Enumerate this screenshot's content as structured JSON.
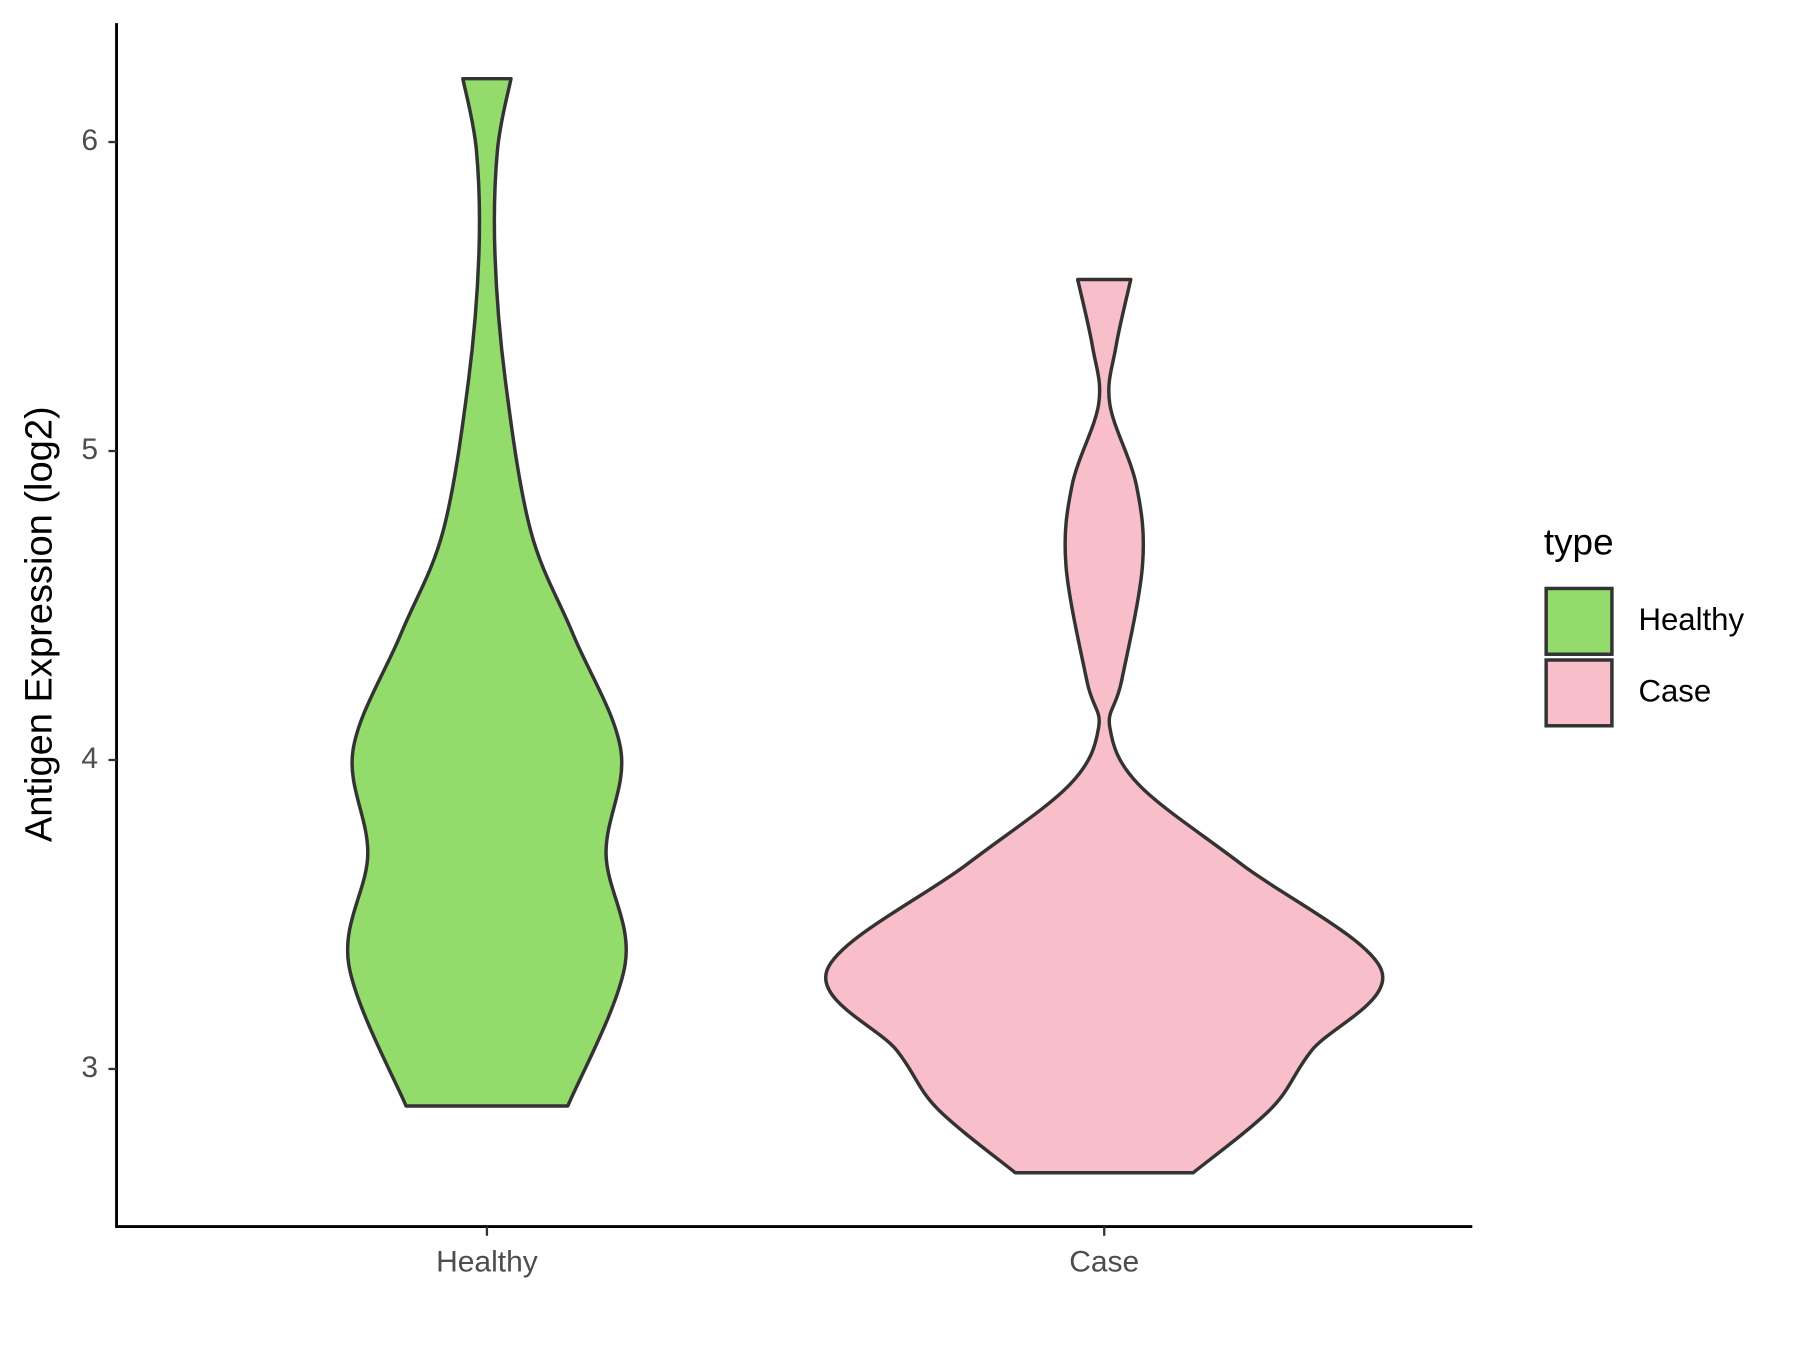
{
  "chart_data": {
    "type": "violin",
    "y_label": "Antigen Expression (log2)",
    "categories": [
      "Healthy",
      "Case"
    ],
    "legend_title": "type",
    "series": [
      {
        "name": "Healthy",
        "color": "#93db6b",
        "y": [
          6.205,
          5.973,
          5.637,
          5.226,
          4.741,
          4.405,
          4.031,
          3.695,
          3.34,
          2.88
        ],
        "width": [
          0.039,
          0.017,
          0.013,
          0.03,
          0.071,
          0.14,
          0.217,
          0.193,
          0.224,
          0.131
        ]
      },
      {
        "name": "Case",
        "color": "#f8bfcb",
        "y": [
          5.555,
          5.338,
          5.152,
          4.89,
          4.63,
          4.255,
          4.106,
          3.92,
          3.66,
          3.32,
          3.06,
          2.873,
          2.664
        ],
        "width": [
          0.043,
          0.019,
          0.009,
          0.052,
          0.062,
          0.028,
          0.009,
          0.056,
          0.224,
          0.449,
          0.336,
          0.271,
          0.144
        ]
      }
    ],
    "ylim": [
      2.49,
      6.385
    ],
    "yticks": [
      3,
      4,
      5,
      6
    ]
  }
}
